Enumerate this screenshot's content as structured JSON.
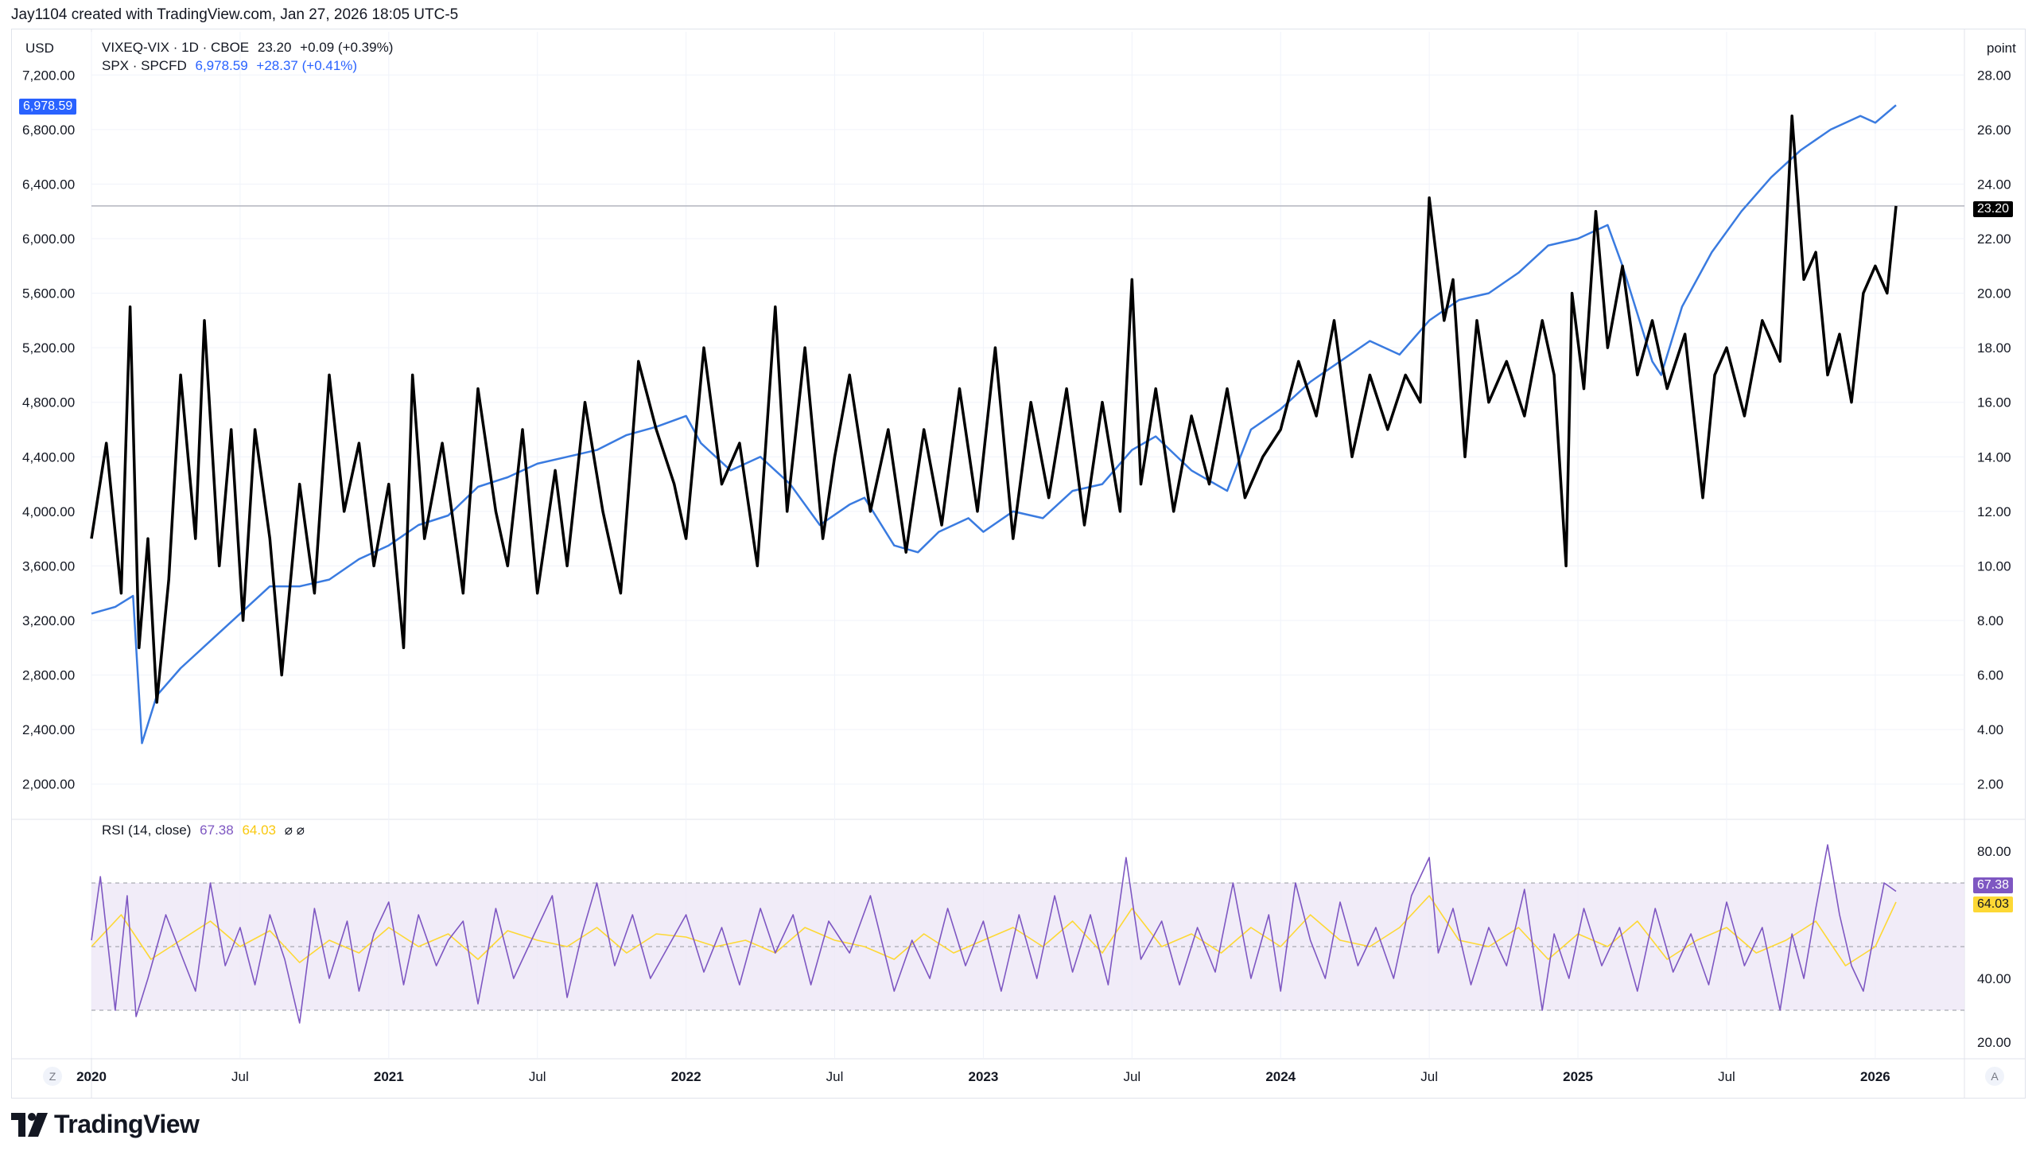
{
  "header": {
    "text": "Jay1104 created with TradingView.com, Jan 27, 2026 18:05 UTC-5"
  },
  "units": {
    "left": "USD",
    "right": "point"
  },
  "legend": {
    "vix": {
      "name": "VIXEQ-VIX · 1D · CBOE",
      "value": "23.20",
      "change": "+0.09 (+0.39%)"
    },
    "spx": {
      "name": "SPX · SPCFD",
      "value": "6,978.59",
      "change": "+28.37 (+0.41%)"
    },
    "rsi": {
      "name": "RSI (14, close)",
      "value": "67.38",
      "ma_value": "64.03",
      "icons": "⌀ ⌀"
    }
  },
  "price_labels": {
    "spx": "6,978.59",
    "vix": "23.20",
    "rsi": "67.38",
    "rsi_ma": "64.03"
  },
  "buttons": {
    "left": "Z",
    "right": "A"
  },
  "logo": {
    "text": "TradingView"
  },
  "colors": {
    "spx": "#2962ff",
    "spx_line": "#3a7be0",
    "vix": "#000000",
    "rsi": "#7e57c2",
    "rsi_ma": "#fdd835",
    "rsi_band": "#ede7f6"
  },
  "chart_data": {
    "type": "line",
    "left_axis": {
      "label": "USD",
      "ticks": [
        "7,200.00",
        "6,800.00",
        "6,400.00",
        "6,000.00",
        "5,600.00",
        "5,200.00",
        "4,800.00",
        "4,400.00",
        "4,000.00",
        "3,600.00",
        "3,200.00",
        "2,800.00",
        "2,400.00",
        "2,000.00"
      ],
      "ylim": [
        1800,
        7400
      ]
    },
    "right_axis": {
      "label": "point",
      "ticks": [
        "28.00",
        "26.00",
        "24.00",
        "22.00",
        "20.00",
        "18.00",
        "16.00",
        "14.00",
        "12.00",
        "10.00",
        "8.00",
        "6.00",
        "4.00",
        "2.00"
      ],
      "ylim": [
        1,
        29
      ]
    },
    "x_ticks": [
      "2020",
      "Jul",
      "2021",
      "Jul",
      "2022",
      "Jul",
      "2023",
      "Jul",
      "2024",
      "Jul",
      "2025",
      "Jul",
      "2026"
    ],
    "x_tick_values": [
      2020.0,
      2020.5,
      2021.0,
      2021.5,
      2022.0,
      2022.5,
      2023.0,
      2023.5,
      2024.0,
      2024.5,
      2025.0,
      2025.5,
      2026.0
    ],
    "xlim": [
      2020.0,
      2026.3
    ],
    "series": [
      {
        "name": "SPX · SPCFD",
        "axis": "left",
        "x": [
          2020.0,
          2020.08,
          2020.14,
          2020.17,
          2020.22,
          2020.3,
          2020.4,
          2020.5,
          2020.6,
          2020.7,
          2020.8,
          2020.9,
          2021.0,
          2021.1,
          2021.2,
          2021.3,
          2021.4,
          2021.5,
          2021.6,
          2021.7,
          2021.8,
          2021.9,
          2022.0,
          2022.05,
          2022.15,
          2022.25,
          2022.35,
          2022.45,
          2022.55,
          2022.6,
          2022.7,
          2022.78,
          2022.85,
          2022.95,
          2023.0,
          2023.1,
          2023.2,
          2023.3,
          2023.4,
          2023.5,
          2023.58,
          2023.7,
          2023.82,
          2023.9,
          2024.0,
          2024.1,
          2024.2,
          2024.3,
          2024.4,
          2024.5,
          2024.6,
          2024.7,
          2024.8,
          2024.9,
          2025.0,
          2025.1,
          2025.15,
          2025.25,
          2025.28,
          2025.35,
          2025.45,
          2025.55,
          2025.65,
          2025.75,
          2025.85,
          2025.95,
          2026.0,
          2026.07
        ],
        "values": [
          3250,
          3300,
          3380,
          2300,
          2650,
          2850,
          3050,
          3250,
          3450,
          3450,
          3500,
          3650,
          3750,
          3900,
          3970,
          4180,
          4250,
          4350,
          4400,
          4450,
          4560,
          4620,
          4700,
          4500,
          4300,
          4400,
          4200,
          3900,
          4050,
          4100,
          3750,
          3700,
          3850,
          3950,
          3850,
          4000,
          3950,
          4150,
          4200,
          4450,
          4550,
          4300,
          4150,
          4600,
          4750,
          4950,
          5100,
          5250,
          5150,
          5400,
          5550,
          5600,
          5750,
          5950,
          6000,
          6100,
          5800,
          5100,
          5000,
          5500,
          5900,
          6200,
          6450,
          6650,
          6800,
          6900,
          6850,
          6978.59
        ]
      },
      {
        "name": "VIXEQ-VIX",
        "axis": "right",
        "x": [
          2020.0,
          2020.05,
          2020.1,
          2020.13,
          2020.16,
          2020.19,
          2020.22,
          2020.26,
          2020.3,
          2020.35,
          2020.38,
          2020.43,
          2020.47,
          2020.51,
          2020.55,
          2020.6,
          2020.64,
          2020.7,
          2020.75,
          2020.8,
          2020.85,
          2020.9,
          2020.95,
          2021.0,
          2021.05,
          2021.08,
          2021.12,
          2021.18,
          2021.25,
          2021.3,
          2021.36,
          2021.4,
          2021.45,
          2021.5,
          2021.56,
          2021.6,
          2021.66,
          2021.72,
          2021.78,
          2021.84,
          2021.9,
          2021.96,
          2022.0,
          2022.06,
          2022.12,
          2022.18,
          2022.24,
          2022.3,
          2022.34,
          2022.4,
          2022.46,
          2022.5,
          2022.55,
          2022.62,
          2022.68,
          2022.74,
          2022.8,
          2022.86,
          2022.92,
          2022.98,
          2023.04,
          2023.1,
          2023.16,
          2023.22,
          2023.28,
          2023.34,
          2023.4,
          2023.46,
          2023.5,
          2023.53,
          2023.58,
          2023.64,
          2023.7,
          2023.76,
          2023.82,
          2023.88,
          2023.94,
          2024.0,
          2024.06,
          2024.12,
          2024.18,
          2024.24,
          2024.3,
          2024.36,
          2024.42,
          2024.47,
          2024.5,
          2024.55,
          2024.58,
          2024.62,
          2024.66,
          2024.7,
          2024.76,
          2024.82,
          2024.88,
          2024.92,
          2024.96,
          2024.98,
          2025.02,
          2025.06,
          2025.1,
          2025.15,
          2025.2,
          2025.25,
          2025.3,
          2025.36,
          2025.42,
          2025.46,
          2025.5,
          2025.56,
          2025.62,
          2025.68,
          2025.72,
          2025.76,
          2025.8,
          2025.84,
          2025.88,
          2025.92,
          2025.96,
          2026.0,
          2026.04,
          2026.07
        ],
        "values": [
          11.0,
          14.5,
          9.0,
          19.5,
          7.0,
          11.0,
          5.0,
          9.5,
          17.0,
          11.0,
          19.0,
          10.0,
          15.0,
          8.0,
          15.0,
          11.0,
          6.0,
          13.0,
          9.0,
          17.0,
          12.0,
          14.5,
          10.0,
          13.0,
          7.0,
          17.0,
          11.0,
          14.5,
          9.0,
          16.5,
          12.0,
          10.0,
          15.0,
          9.0,
          13.5,
          10.0,
          16.0,
          12.0,
          9.0,
          17.5,
          15.0,
          13.0,
          11.0,
          18.0,
          13.0,
          14.5,
          10.0,
          19.5,
          12.0,
          18.0,
          11.0,
          14.0,
          17.0,
          12.0,
          15.0,
          10.5,
          15.0,
          11.5,
          16.5,
          12.0,
          18.0,
          11.0,
          16.0,
          12.5,
          16.5,
          11.5,
          16.0,
          12.0,
          20.5,
          13.0,
          16.5,
          12.0,
          15.5,
          13.0,
          16.5,
          12.5,
          14.0,
          15.0,
          17.5,
          15.5,
          19.0,
          14.0,
          17.0,
          15.0,
          17.0,
          16.0,
          23.5,
          19.0,
          20.5,
          14.0,
          19.0,
          16.0,
          17.5,
          15.5,
          19.0,
          17.0,
          10.0,
          20.0,
          16.5,
          23.0,
          18.0,
          21.0,
          17.0,
          19.0,
          16.5,
          18.5,
          12.5,
          17.0,
          18.0,
          15.5,
          19.0,
          17.5,
          26.5,
          20.5,
          21.5,
          17.0,
          18.5,
          16.0,
          20.0,
          21.0,
          20.0,
          23.2
        ]
      },
      {
        "name": "RSI (14, close)",
        "panel": "rsi",
        "ylim": [
          15,
          85
        ],
        "x": [
          2020.0,
          2020.03,
          2020.08,
          2020.12,
          2020.15,
          2020.19,
          2020.25,
          2020.3,
          2020.35,
          2020.4,
          2020.45,
          2020.5,
          2020.55,
          2020.6,
          2020.65,
          2020.7,
          2020.75,
          2020.8,
          2020.86,
          2020.9,
          2020.95,
          2021.0,
          2021.05,
          2021.1,
          2021.16,
          2021.2,
          2021.25,
          2021.3,
          2021.36,
          2021.42,
          2021.48,
          2021.55,
          2021.6,
          2021.65,
          2021.7,
          2021.76,
          2021.82,
          2021.88,
          2021.94,
          2022.0,
          2022.06,
          2022.12,
          2022.18,
          2022.25,
          2022.3,
          2022.36,
          2022.42,
          2022.48,
          2022.55,
          2022.62,
          2022.7,
          2022.76,
          2022.82,
          2022.88,
          2022.94,
          2023.0,
          2023.06,
          2023.12,
          2023.18,
          2023.24,
          2023.3,
          2023.36,
          2023.42,
          2023.48,
          2023.53,
          2023.6,
          2023.66,
          2023.72,
          2023.78,
          2023.84,
          2023.9,
          2023.96,
          2024.0,
          2024.05,
          2024.1,
          2024.15,
          2024.2,
          2024.26,
          2024.32,
          2024.38,
          2024.44,
          2024.5,
          2024.53,
          2024.58,
          2024.64,
          2024.7,
          2024.76,
          2024.82,
          2024.88,
          2024.92,
          2024.97,
          2025.02,
          2025.08,
          2025.14,
          2025.2,
          2025.26,
          2025.32,
          2025.38,
          2025.44,
          2025.5,
          2025.56,
          2025.62,
          2025.68,
          2025.72,
          2025.76,
          2025.8,
          2025.84,
          2025.88,
          2025.92,
          2025.96,
          2026.0,
          2026.03,
          2026.07
        ],
        "values": [
          52,
          72,
          30,
          66,
          28,
          40,
          60,
          48,
          36,
          70,
          44,
          56,
          38,
          60,
          46,
          26,
          62,
          40,
          58,
          36,
          54,
          64,
          38,
          60,
          44,
          52,
          58,
          32,
          62,
          40,
          52,
          66,
          34,
          54,
          70,
          44,
          60,
          40,
          50,
          60,
          42,
          56,
          38,
          62,
          48,
          60,
          38,
          58,
          48,
          66,
          36,
          52,
          40,
          62,
          44,
          58,
          36,
          60,
          40,
          66,
          42,
          60,
          38,
          78,
          46,
          58,
          38,
          56,
          42,
          70,
          40,
          60,
          36,
          70,
          52,
          40,
          64,
          44,
          56,
          40,
          66,
          78,
          48,
          62,
          38,
          56,
          44,
          68,
          30,
          54,
          40,
          62,
          44,
          56,
          36,
          62,
          42,
          54,
          38,
          64,
          44,
          56,
          30,
          54,
          40,
          62,
          82,
          60,
          44,
          36,
          56,
          70,
          67.38
        ]
      },
      {
        "name": "RSI MA",
        "panel": "rsi",
        "ylim": [
          15,
          85
        ],
        "x": [
          2020.0,
          2020.1,
          2020.2,
          2020.3,
          2020.4,
          2020.5,
          2020.6,
          2020.7,
          2020.8,
          2020.9,
          2021.0,
          2021.1,
          2021.2,
          2021.3,
          2021.4,
          2021.5,
          2021.6,
          2021.7,
          2021.8,
          2021.9,
          2022.0,
          2022.1,
          2022.2,
          2022.3,
          2022.4,
          2022.5,
          2022.6,
          2022.7,
          2022.8,
          2022.9,
          2023.0,
          2023.1,
          2023.2,
          2023.3,
          2023.4,
          2023.5,
          2023.6,
          2023.7,
          2023.8,
          2023.9,
          2024.0,
          2024.1,
          2024.2,
          2024.3,
          2024.4,
          2024.5,
          2024.6,
          2024.7,
          2024.8,
          2024.9,
          2025.0,
          2025.1,
          2025.2,
          2025.3,
          2025.4,
          2025.5,
          2025.6,
          2025.7,
          2025.8,
          2025.9,
          2026.0,
          2026.07
        ],
        "values": [
          50,
          60,
          46,
          52,
          58,
          50,
          55,
          45,
          52,
          48,
          56,
          50,
          54,
          46,
          55,
          52,
          50,
          56,
          48,
          54,
          53,
          50,
          52,
          48,
          56,
          52,
          50,
          46,
          54,
          48,
          52,
          56,
          50,
          58,
          48,
          62,
          50,
          54,
          48,
          56,
          50,
          60,
          52,
          50,
          56,
          66,
          52,
          50,
          56,
          46,
          54,
          50,
          58,
          46,
          52,
          56,
          48,
          52,
          58,
          44,
          50,
          64.03
        ]
      }
    ],
    "rsi_bands": {
      "upper": 70,
      "middle": 50,
      "lower": 30
    },
    "rsi_ticks": [
      "80.00",
      "40.00",
      "20.00"
    ],
    "rsi_tick_values": [
      80,
      40,
      20
    ],
    "rsi_ylim": [
      15,
      85
    ],
    "legend_placement": "top-left",
    "grid": true
  }
}
